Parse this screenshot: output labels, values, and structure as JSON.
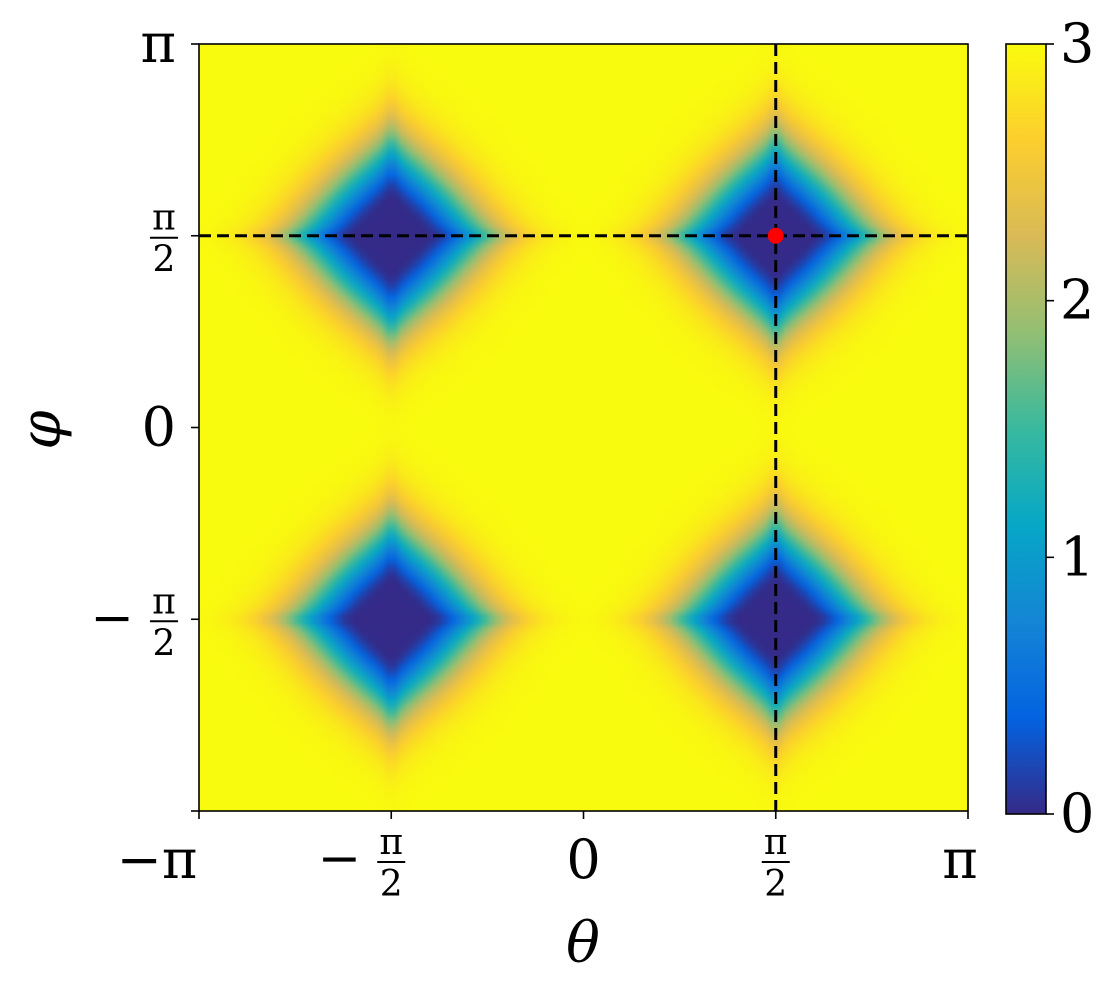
{
  "chart_data": {
    "type": "heatmap",
    "title": "",
    "xlabel": "θ",
    "ylabel": "φ",
    "xlim": [
      -3.14159,
      3.14159
    ],
    "ylim": [
      -3.14159,
      3.14159
    ],
    "x_ticks": [
      {
        "value": -3.14159,
        "label": "−π"
      },
      {
        "value": -1.5708,
        "label": "−π/2"
      },
      {
        "value": 0,
        "label": "0"
      },
      {
        "value": 1.5708,
        "label": "π/2"
      },
      {
        "value": 3.14159,
        "label": "π"
      }
    ],
    "y_ticks": [
      {
        "value": 3.14159,
        "label": "π"
      },
      {
        "value": 1.5708,
        "label": "π/2"
      },
      {
        "value": 0,
        "label": "0"
      },
      {
        "value": -1.5708,
        "label": "−π/2"
      },
      {
        "value": -3.14159,
        "label": ""
      }
    ],
    "colorbar": {
      "range": [
        0,
        3
      ],
      "ticks": [
        0,
        1,
        2,
        3
      ],
      "colormap": [
        "#352a87",
        "#0363e1",
        "#1485d4",
        "#06a7c6",
        "#38b99e",
        "#92bf73",
        "#d9ba56",
        "#fcce2e",
        "#f9fb0e"
      ]
    },
    "field": {
      "description": "Four cross-shaped minima (value 0) on a saturated background (value 3)",
      "background_value": 3,
      "minimum_value": 0,
      "minima_centers": [
        {
          "theta": -1.5708,
          "phi": 1.5708
        },
        {
          "theta": 1.5708,
          "phi": 1.5708
        },
        {
          "theta": -1.5708,
          "phi": -1.5708
        },
        {
          "theta": 1.5708,
          "phi": -1.5708
        }
      ]
    },
    "reference_lines": [
      {
        "orientation": "vertical",
        "theta": 1.5708,
        "style": "dashed",
        "color": "#000000"
      },
      {
        "orientation": "horizontal",
        "phi": 1.5708,
        "style": "dashed",
        "color": "#000000"
      }
    ],
    "marker": {
      "theta": 1.5708,
      "phi": 1.5708,
      "color": "#ff0000"
    }
  }
}
